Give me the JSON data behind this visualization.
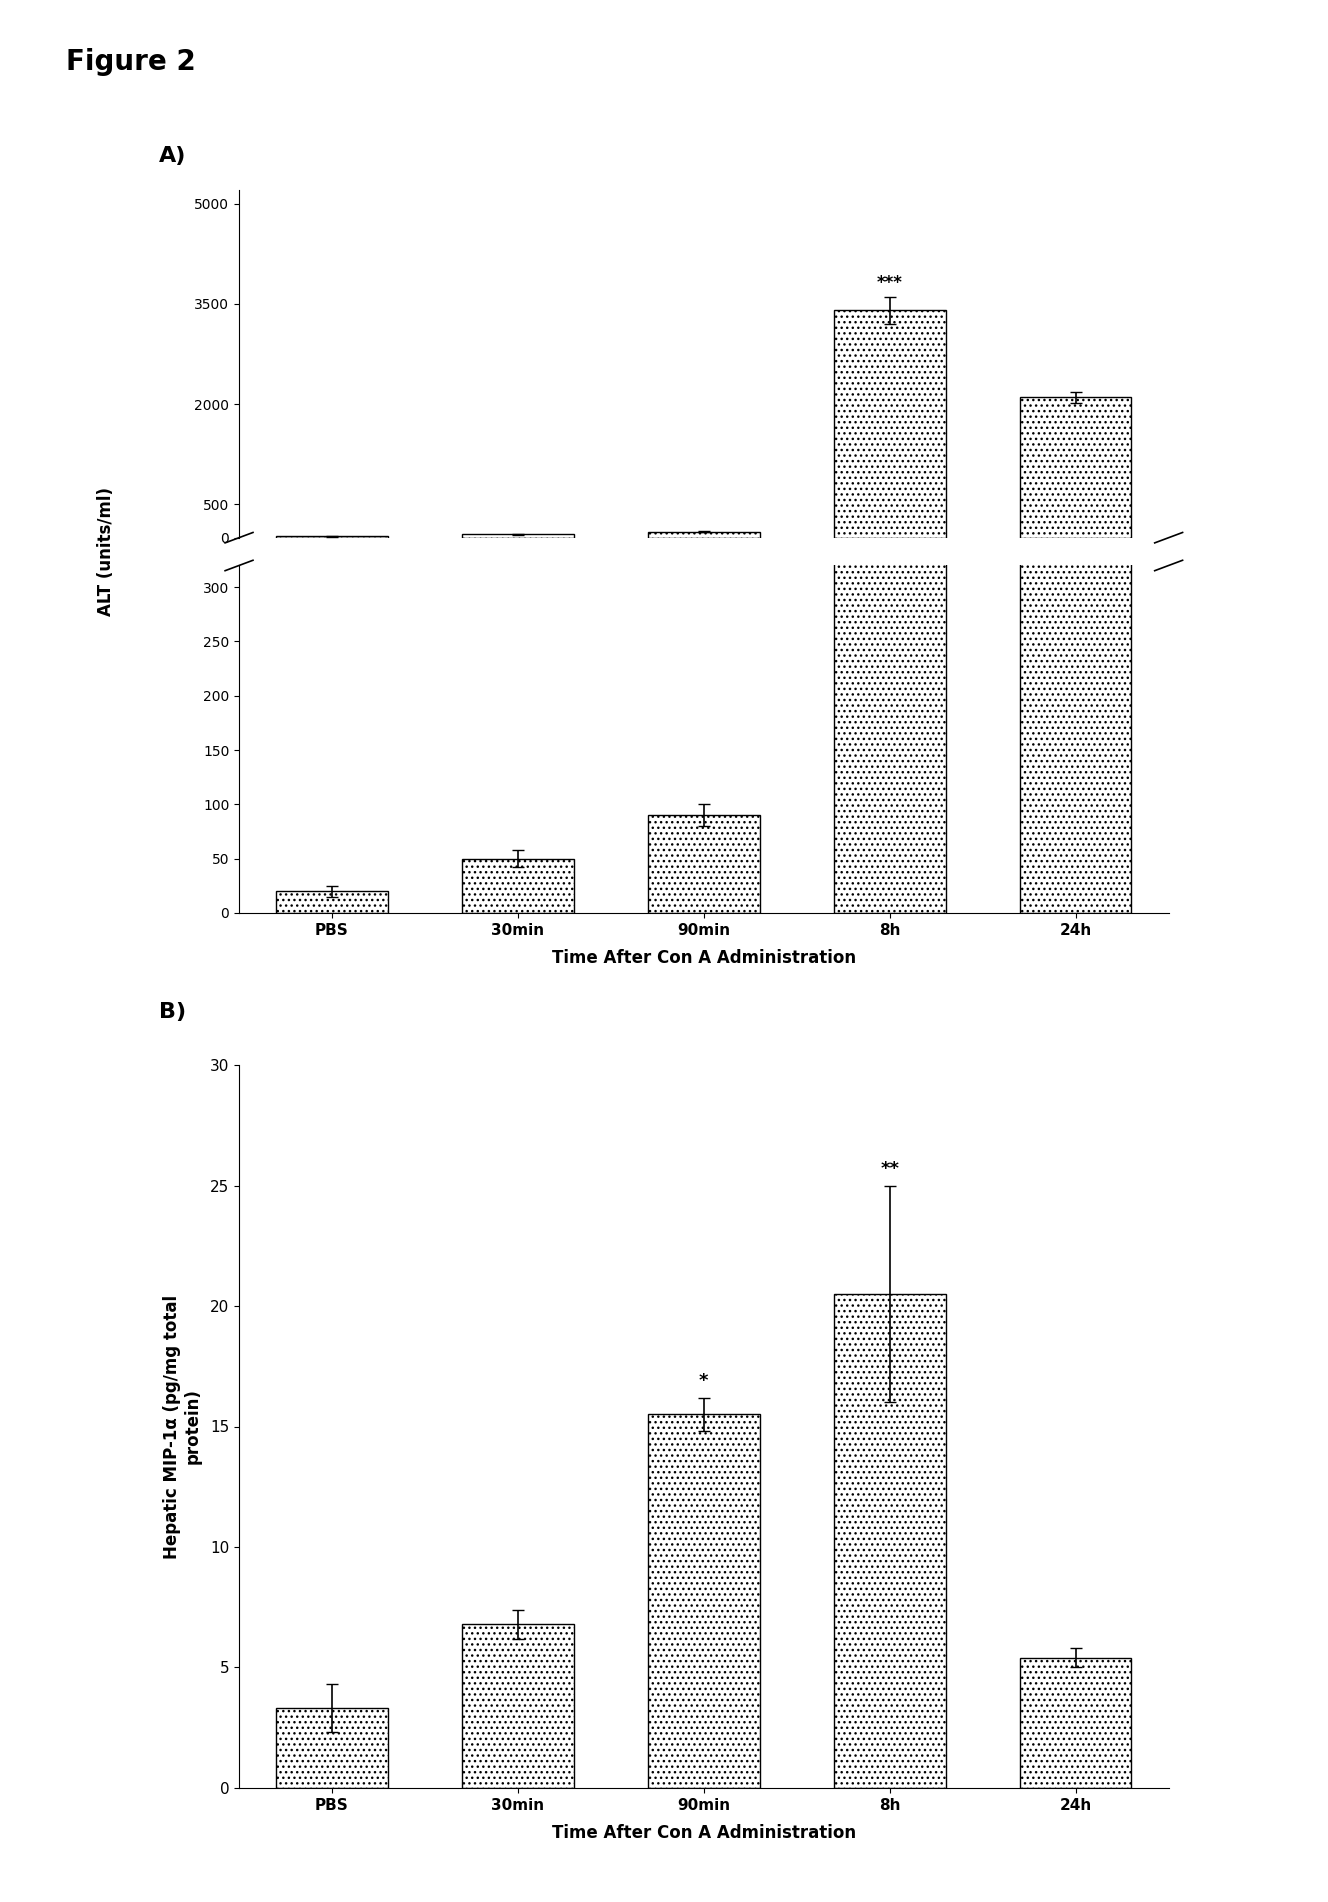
{
  "fig_title": "Figure 2",
  "panel_A_label": "A)",
  "panel_B_label": "B)",
  "categories": [
    "PBS",
    "30min",
    "90min",
    "8h",
    "24h"
  ],
  "alt_values": [
    20,
    50,
    90,
    3400,
    2100
  ],
  "alt_errors": [
    5,
    8,
    10,
    200,
    80
  ],
  "alt_ylabel": "ALT (units/ml)",
  "alt_xlabel": "Time After Con A Administration",
  "alt_upper_ticks": [
    0,
    500,
    2000,
    3500,
    5000
  ],
  "alt_lower_ticks": [
    0,
    50,
    100,
    150,
    200,
    250,
    300
  ],
  "mip_values": [
    3.3,
    6.8,
    15.5,
    20.5,
    5.4
  ],
  "mip_errors": [
    1.0,
    0.6,
    0.7,
    4.5,
    0.4
  ],
  "mip_ylabel": "Hepatic MIP-1α (pg/mg total\nprotein)",
  "mip_xlabel": "Time After Con A Administration",
  "mip_yticks": [
    0,
    5,
    10,
    15,
    20,
    25,
    30
  ],
  "mip_ylim": [
    0,
    30
  ],
  "bar_color": "#888888",
  "bar_hatch": "...",
  "bg_color": "#ffffff",
  "annotation_90min": "*",
  "annotation_8h": "**",
  "alt_annotation_8h": "***"
}
